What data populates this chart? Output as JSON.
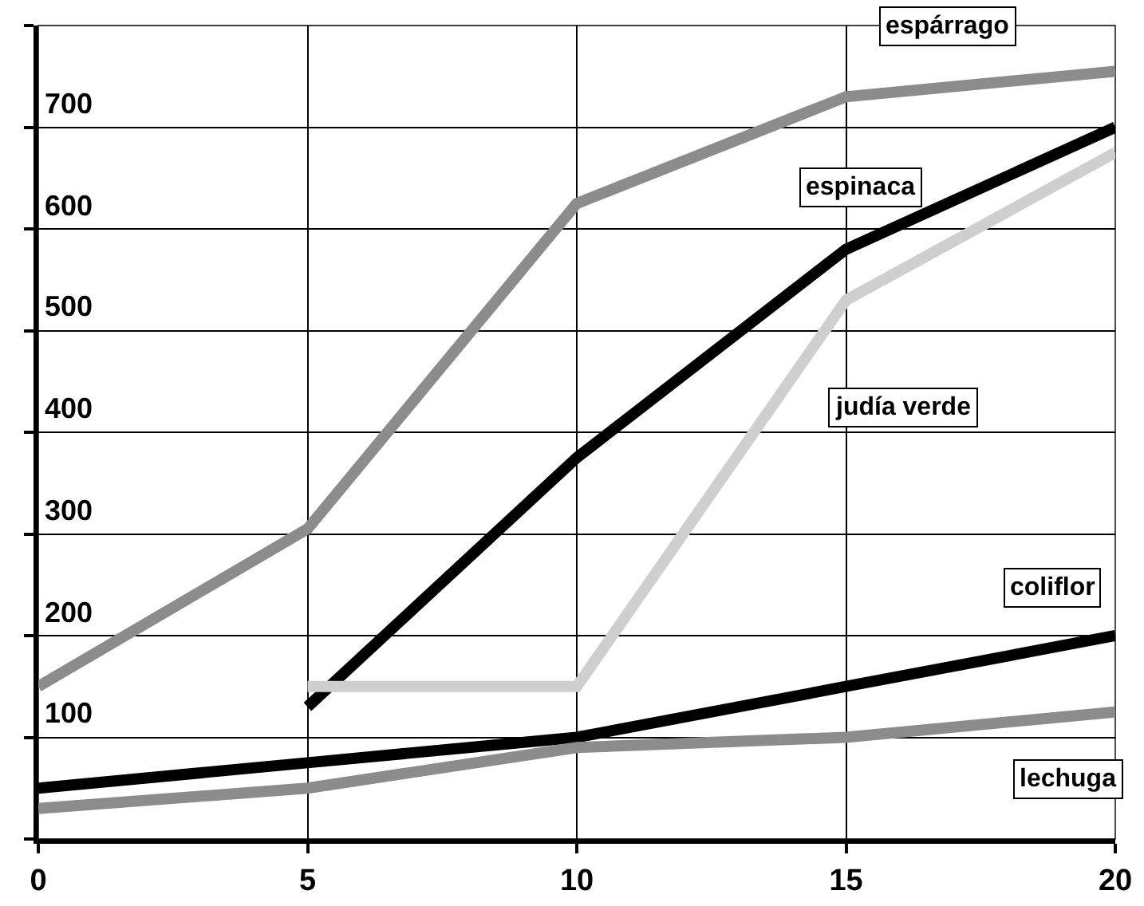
{
  "chart_data": {
    "type": "line",
    "x": [
      0,
      5,
      10,
      15,
      20
    ],
    "series": [
      {
        "name": "espárrago",
        "color": "#8c8c8c",
        "values": [
          150,
          305,
          625,
          730,
          755
        ]
      },
      {
        "name": "espinaca",
        "color": "#000000",
        "values": [
          null,
          130,
          375,
          580,
          700
        ]
      },
      {
        "name": "judía verde",
        "color": "#cfcfcf",
        "values": [
          null,
          150,
          150,
          530,
          675
        ]
      },
      {
        "name": "coliflor",
        "color": "#000000",
        "values": [
          50,
          75,
          100,
          150,
          200
        ]
      },
      {
        "name": "lechuga",
        "color": "#8c8c8c",
        "values": [
          30,
          50,
          90,
          100,
          125
        ]
      }
    ],
    "xlim": [
      0,
      20
    ],
    "xticks": [
      0,
      5,
      10,
      15,
      20
    ],
    "ylim": [
      0,
      800
    ],
    "yticks": [
      {
        "value": 0,
        "label": null
      },
      100,
      200,
      300,
      400,
      500,
      600,
      700,
      {
        "value": 800,
        "label": null
      }
    ],
    "grid": true,
    "legend": false,
    "marker": "none",
    "line_style": "solid"
  }
}
